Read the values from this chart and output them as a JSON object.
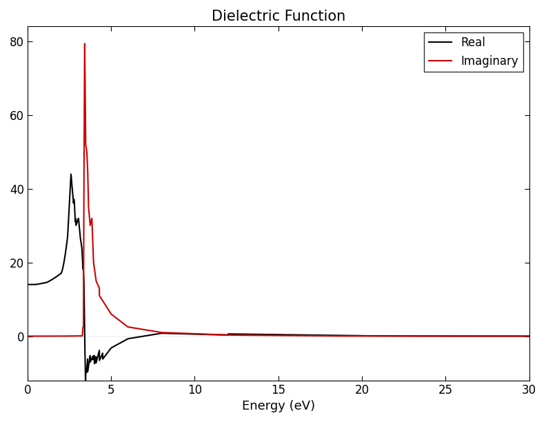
{
  "title": "Dielectric Function",
  "xlabel": "Energy (eV)",
  "ylabel": "",
  "xlim": [
    0,
    30
  ],
  "ylim": [
    -12,
    84
  ],
  "yticks": [
    0,
    20,
    40,
    60,
    80
  ],
  "xticks": [
    0,
    5,
    10,
    15,
    20,
    25,
    30
  ],
  "real_color": "#000000",
  "imag_color": "#cc0000",
  "legend_labels": [
    "Real",
    "Imaginary"
  ],
  "linewidth": 1.5,
  "title_fontsize": 15,
  "label_fontsize": 13,
  "tick_fontsize": 12,
  "legend_fontsize": 12,
  "background_color": "#ffffff",
  "figsize": [
    7.92,
    6.12
  ],
  "dpi": 100
}
